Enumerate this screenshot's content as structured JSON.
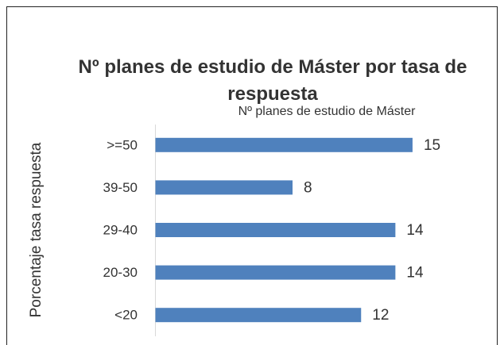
{
  "chart_data": {
    "type": "bar",
    "orientation": "horizontal",
    "title": "Nº planes de estudio de Máster por tasa de respuesta",
    "y_label": "Porcentaje tasa respuesta",
    "categories": [
      ">=50",
      "39-50",
      "29-40",
      "20-30",
      "<20"
    ],
    "series": [
      {
        "name": "Nº planes de estudio de Máster",
        "color": "#4f81bd",
        "values": [
          15,
          8,
          14,
          14,
          12
        ]
      }
    ],
    "xlim": [
      0,
      16
    ]
  }
}
